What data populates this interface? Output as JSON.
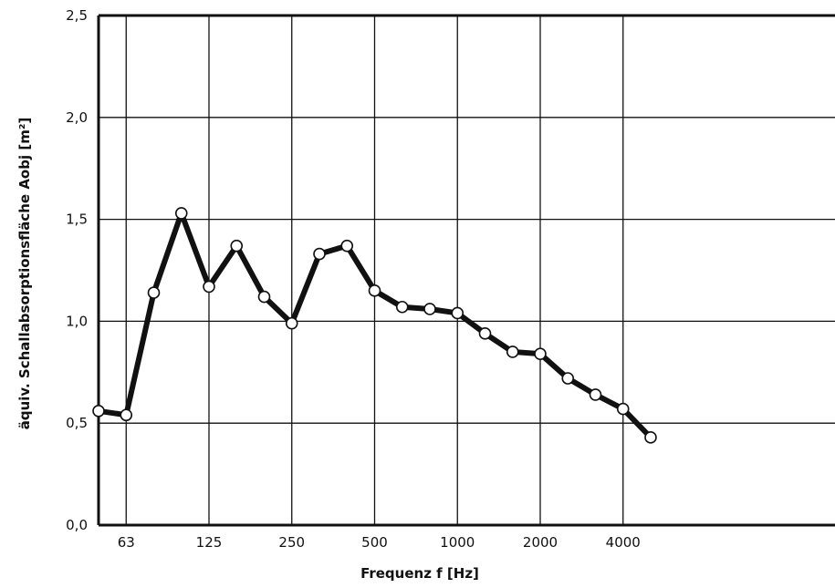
{
  "chart_data": {
    "type": "line",
    "xlabel": "Frequenz f [Hz]",
    "ylabel": "äquiv. Schallabsorptionsfläche Aobj [m²]",
    "ylim": [
      0,
      2.5
    ],
    "y_ticks": [
      "0,0",
      "0,5",
      "1,0",
      "1,5",
      "2,0",
      "2,5"
    ],
    "x_categories": [
      "50",
      "63",
      "80",
      "100",
      "125",
      "160",
      "200",
      "250",
      "315",
      "400",
      "500",
      "630",
      "800",
      "1000",
      "1250",
      "1600",
      "2000",
      "2500",
      "3150",
      "4000",
      "5000"
    ],
    "x_tick_labels": [
      "63",
      "125",
      "250",
      "500",
      "1000",
      "2000",
      "4000"
    ],
    "grid": true,
    "series": [
      {
        "values": [
          0.56,
          0.54,
          1.14,
          1.53,
          1.17,
          1.37,
          1.12,
          0.99,
          1.33,
          1.37,
          1.15,
          1.07,
          1.06,
          1.04,
          0.94,
          0.85,
          0.84,
          0.72,
          0.64,
          0.57,
          0.43
        ]
      }
    ],
    "colors": {
      "line": "#111111",
      "marker_fill": "#ffffff",
      "grid": "#111111"
    }
  }
}
